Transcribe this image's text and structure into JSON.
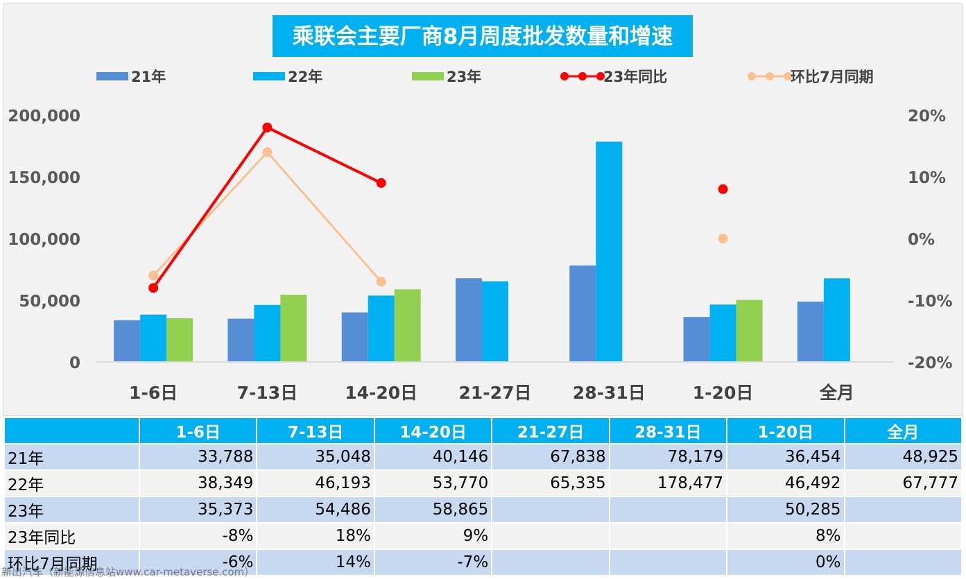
{
  "chart_data": {
    "type": "bar",
    "title": "乘联会主要厂商8月周度批发数量和增速",
    "categories": [
      "1-6日",
      "7-13日",
      "14-20日",
      "21-27日",
      "28-31日",
      "1-20日",
      "全月"
    ],
    "series": [
      {
        "name": "21年",
        "type": "bar",
        "axis": "left",
        "color": "#558ed5",
        "values": [
          33788,
          35048,
          40146,
          67838,
          78179,
          36454,
          48925
        ]
      },
      {
        "name": "22年",
        "type": "bar",
        "axis": "left",
        "color": "#00b0f0",
        "values": [
          38349,
          46193,
          53770,
          65335,
          178477,
          46492,
          67777
        ]
      },
      {
        "name": "23年",
        "type": "bar",
        "axis": "left",
        "color": "#92d050",
        "values": [
          35373,
          54486,
          58865,
          null,
          null,
          50285,
          null
        ]
      },
      {
        "name": "23年同比",
        "type": "line",
        "axis": "right",
        "color": "#ff0000",
        "values": [
          -8,
          18,
          9,
          null,
          null,
          8,
          null
        ]
      },
      {
        "name": "环比7月同期",
        "type": "line",
        "axis": "right",
        "color": "#fac090",
        "values": [
          -6,
          14,
          -7,
          null,
          null,
          0,
          null
        ]
      }
    ],
    "left_axis": {
      "min": 0,
      "max": 200000,
      "ticks": [
        "0",
        "50,000",
        "100,000",
        "150,000",
        "200,000"
      ]
    },
    "right_axis": {
      "min": -20,
      "max": 20,
      "ticks": [
        "-20%",
        "-10%",
        "0%",
        "10%",
        "20%"
      ]
    },
    "legend_position": "top",
    "grid": false
  },
  "table": {
    "header": [
      "",
      "1-6日",
      "7-13日",
      "14-20日",
      "21-27日",
      "28-31日",
      "1-20日",
      "全月"
    ],
    "rows": [
      {
        "label": "21年",
        "cells": [
          "33,788",
          "35,048",
          "40,146",
          "67,838",
          "78,179",
          "36,454",
          "48,925"
        ]
      },
      {
        "label": "22年",
        "cells": [
          "38,349",
          "46,193",
          "53,770",
          "65,335",
          "178,477",
          "46,492",
          "67,777"
        ]
      },
      {
        "label": "23年",
        "cells": [
          "35,373",
          "54,486",
          "58,865",
          "",
          "",
          "50,285",
          ""
        ]
      },
      {
        "label": "23年同比",
        "cells": [
          "-8%",
          "18%",
          "9%",
          "",
          "",
          "8%",
          ""
        ]
      },
      {
        "label": "环比7月同期",
        "cells": [
          "-6%",
          "14%",
          "-7%",
          "",
          "",
          "0%",
          ""
        ]
      }
    ]
  },
  "watermark": "新出汽车（新能源信息站www.car-metaverse.com）"
}
